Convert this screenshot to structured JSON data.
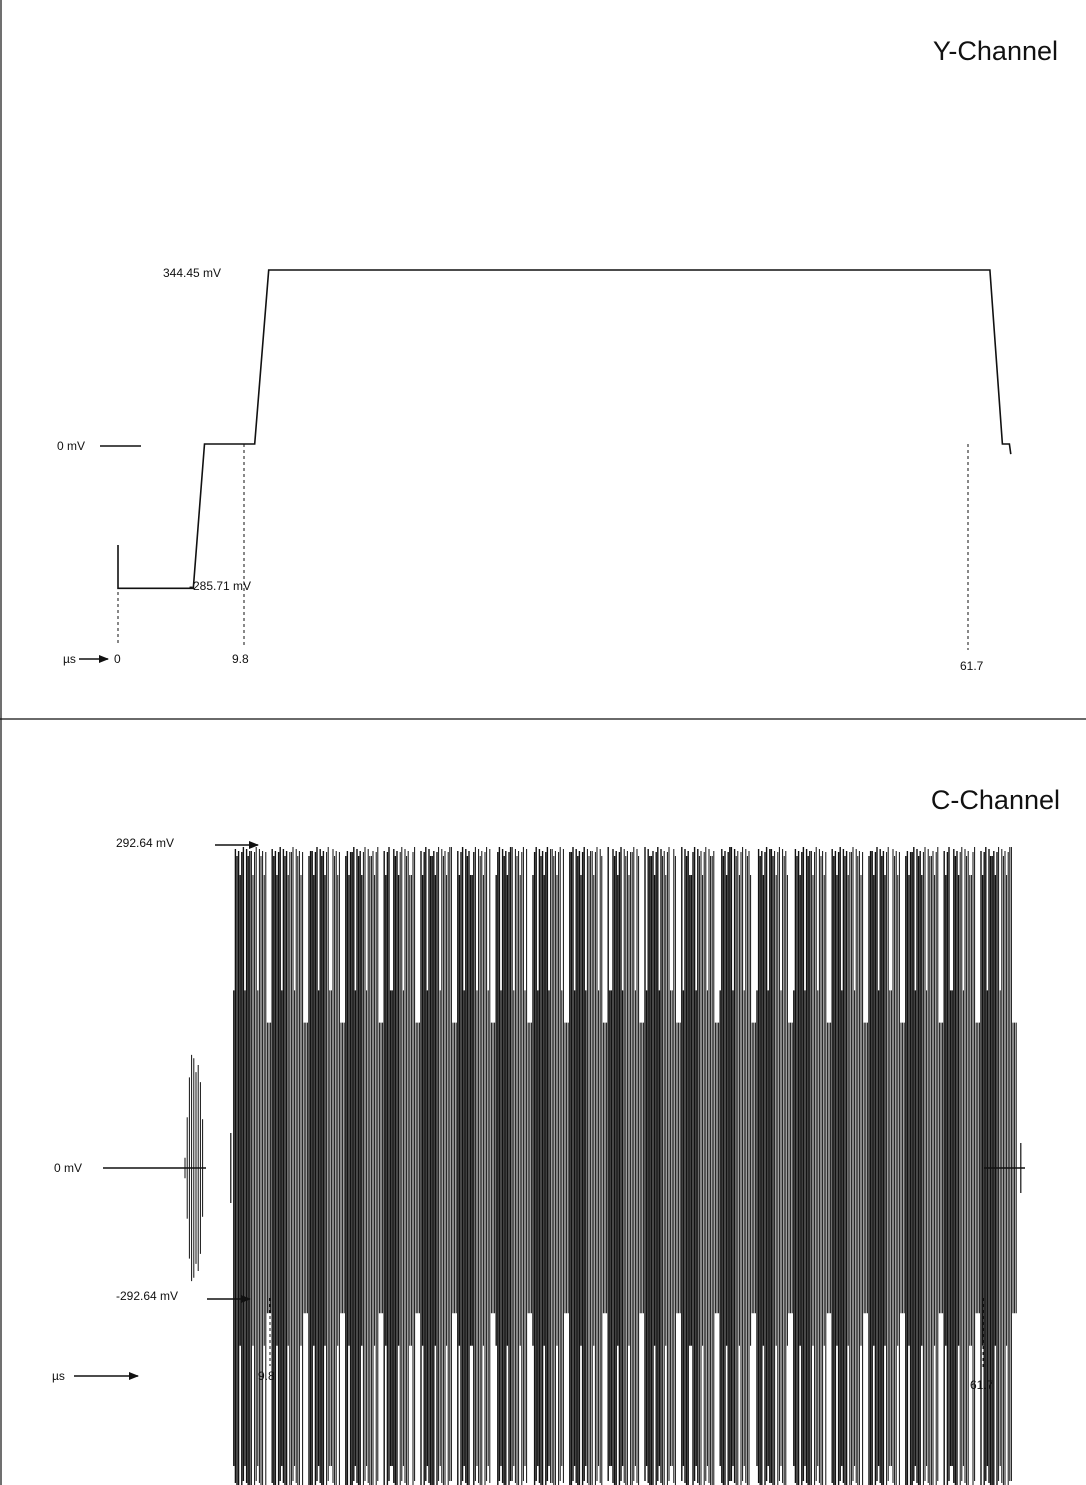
{
  "panels": {
    "y": {
      "title": "Y-Channel",
      "peak_label": "344.45 mV",
      "zero_label": "0 mV",
      "sync_label": "-285.71 mV",
      "unit_label": "µs",
      "t0_label": "0",
      "t1_label": "9.8",
      "t2_label": "61.7"
    },
    "c": {
      "title": "C-Channel",
      "pos_label": "292.64 mV",
      "zero_label": "0 mV",
      "neg_label": "-292.64 mV",
      "unit_label": "µs",
      "t1_label": "9.8",
      "t2_label": "61.7"
    }
  },
  "chart_data": [
    {
      "type": "line",
      "title": "Y-Channel",
      "xlabel": "µs",
      "series": [
        {
          "x": [
            0,
            0,
            0.1,
            0.1,
            5.4,
            6.2,
            8.0,
            9.8,
            10.8,
            62.5,
            63.4,
            63.9,
            64.0
          ],
          "y": [
            -200,
            -285.71,
            -285.71,
            -285.71,
            -285.71,
            0,
            0,
            0,
            344.45,
            344.45,
            0,
            0,
            -20
          ]
        }
      ],
      "key_times": [
        0,
        9.8,
        61.7
      ],
      "key_levels": [
        344.45,
        0,
        -285.71
      ]
    },
    {
      "type": "line",
      "title": "C-Channel",
      "xlabel": "µs",
      "burst": {
        "start": 4.8,
        "end": 6.2,
        "amplitude": 120
      },
      "active": {
        "start": 8.3,
        "end": 64.5,
        "amplitude": 292.64
      },
      "key_times": [
        9.8,
        61.7
      ],
      "key_levels": [
        292.64,
        0,
        -292.64
      ]
    }
  ]
}
